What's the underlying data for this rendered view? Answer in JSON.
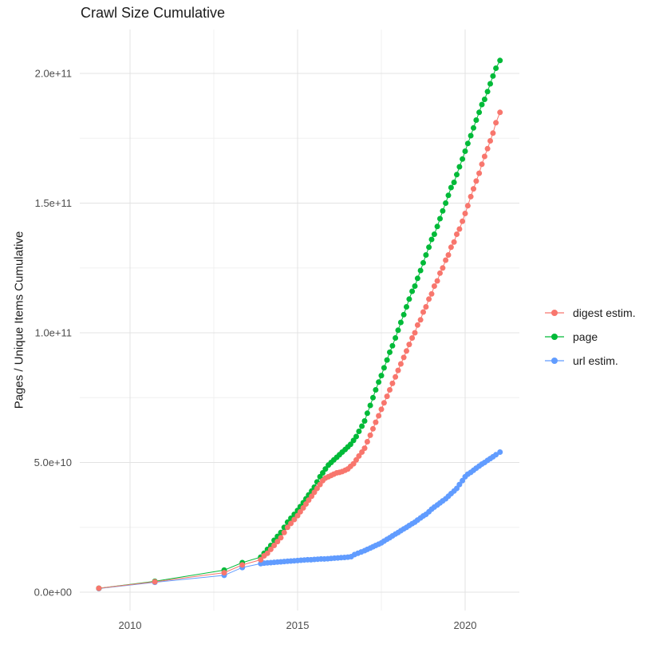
{
  "chart_data": {
    "type": "scatter-line",
    "title": "Crawl Size Cumulative",
    "xlabel": "",
    "ylabel": "Pages / Unique Items Cumulative",
    "grid": true,
    "legend_position": "right",
    "value_unit": "billions (1e9)",
    "x_range": [
      2008.5,
      2021.62
    ],
    "y_range_billions": [
      -7,
      217
    ],
    "x_ticks": [
      {
        "label": "2010",
        "value": 2010
      },
      {
        "label": "2015",
        "value": 2015
      },
      {
        "label": "2020",
        "value": 2020
      }
    ],
    "x_minor_gridlines": [
      2012.5,
      2017.5
    ],
    "y_ticks": [
      {
        "label": "0.0e+00",
        "billions": 0
      },
      {
        "label": "5.0e+10",
        "billions": 50
      },
      {
        "label": "1.0e+11",
        "billions": 100
      },
      {
        "label": "1.5e+11",
        "billions": 150
      },
      {
        "label": "2.0e+11",
        "billions": 200
      }
    ],
    "y_minor_gridlines_billions": [
      25,
      75,
      125,
      175
    ],
    "series": [
      {
        "name": "digest estim.",
        "color": "#F8766D",
        "points": [
          [
            2009.07,
            1.5
          ],
          [
            2010.74,
            4.0
          ],
          [
            2012.81,
            7.5
          ],
          [
            2013.35,
            10.5
          ],
          [
            2013.9,
            12.5
          ],
          [
            2014.0,
            14
          ],
          [
            2014.1,
            15
          ],
          [
            2014.2,
            16.5
          ],
          [
            2014.3,
            18
          ],
          [
            2014.4,
            19.5
          ],
          [
            2014.5,
            21
          ],
          [
            2014.6,
            23
          ],
          [
            2014.7,
            25
          ],
          [
            2014.8,
            26.5
          ],
          [
            2014.9,
            28
          ],
          [
            2015.0,
            29.5
          ],
          [
            2015.08,
            31
          ],
          [
            2015.17,
            32.5
          ],
          [
            2015.25,
            34
          ],
          [
            2015.33,
            35.5
          ],
          [
            2015.42,
            37
          ],
          [
            2015.5,
            38.5
          ],
          [
            2015.58,
            40
          ],
          [
            2015.67,
            41.5
          ],
          [
            2015.75,
            43
          ],
          [
            2015.83,
            44
          ],
          [
            2015.92,
            44.5
          ],
          [
            2016.0,
            45
          ],
          [
            2016.08,
            45.5
          ],
          [
            2016.17,
            46
          ],
          [
            2016.25,
            46.2
          ],
          [
            2016.33,
            46.5
          ],
          [
            2016.42,
            47
          ],
          [
            2016.5,
            47.5
          ],
          [
            2016.58,
            48.5
          ],
          [
            2016.67,
            49.5
          ],
          [
            2016.75,
            51
          ],
          [
            2016.83,
            52.5
          ],
          [
            2016.92,
            54
          ],
          [
            2017.0,
            55.5
          ],
          [
            2017.08,
            58
          ],
          [
            2017.17,
            60.5
          ],
          [
            2017.25,
            63
          ],
          [
            2017.33,
            65.5
          ],
          [
            2017.42,
            68
          ],
          [
            2017.5,
            70.5
          ],
          [
            2017.58,
            73
          ],
          [
            2017.67,
            75.5
          ],
          [
            2017.75,
            78
          ],
          [
            2017.83,
            80.5
          ],
          [
            2017.92,
            83
          ],
          [
            2018.0,
            85.5
          ],
          [
            2018.08,
            88
          ],
          [
            2018.17,
            90.5
          ],
          [
            2018.25,
            93
          ],
          [
            2018.33,
            95.5
          ],
          [
            2018.42,
            98
          ],
          [
            2018.5,
            100
          ],
          [
            2018.58,
            103
          ],
          [
            2018.67,
            105
          ],
          [
            2018.75,
            108
          ],
          [
            2018.83,
            110
          ],
          [
            2018.92,
            113
          ],
          [
            2019.0,
            115
          ],
          [
            2019.08,
            118
          ],
          [
            2019.17,
            120
          ],
          [
            2019.25,
            123
          ],
          [
            2019.33,
            125
          ],
          [
            2019.42,
            128
          ],
          [
            2019.5,
            130
          ],
          [
            2019.58,
            133
          ],
          [
            2019.67,
            135
          ],
          [
            2019.75,
            138
          ],
          [
            2019.83,
            140
          ],
          [
            2019.92,
            143
          ],
          [
            2020.0,
            146
          ],
          [
            2020.08,
            149
          ],
          [
            2020.17,
            152.5
          ],
          [
            2020.25,
            155.5
          ],
          [
            2020.33,
            158.5
          ],
          [
            2020.42,
            161.5
          ],
          [
            2020.5,
            165
          ],
          [
            2020.58,
            168
          ],
          [
            2020.67,
            171
          ],
          [
            2020.75,
            174
          ],
          [
            2020.83,
            177
          ],
          [
            2020.92,
            181
          ],
          [
            2021.04,
            185
          ]
        ]
      },
      {
        "name": "page",
        "color": "#00BA38",
        "points": [
          [
            2009.07,
            1.5
          ],
          [
            2010.74,
            4.2
          ],
          [
            2012.81,
            8.5
          ],
          [
            2013.35,
            11.4
          ],
          [
            2013.9,
            13.5
          ],
          [
            2014.0,
            15
          ],
          [
            2014.1,
            16.5
          ],
          [
            2014.2,
            18
          ],
          [
            2014.3,
            20
          ],
          [
            2014.4,
            21.5
          ],
          [
            2014.5,
            23
          ],
          [
            2014.6,
            25
          ],
          [
            2014.7,
            27
          ],
          [
            2014.8,
            28.5
          ],
          [
            2014.9,
            30
          ],
          [
            2015.0,
            31.5
          ],
          [
            2015.08,
            33
          ],
          [
            2015.17,
            34.5
          ],
          [
            2015.25,
            36
          ],
          [
            2015.33,
            37.5
          ],
          [
            2015.42,
            39
          ],
          [
            2015.5,
            40.5
          ],
          [
            2015.58,
            42.5
          ],
          [
            2015.67,
            44.5
          ],
          [
            2015.75,
            46
          ],
          [
            2015.83,
            47.5
          ],
          [
            2015.92,
            49
          ],
          [
            2016.0,
            50
          ],
          [
            2016.08,
            51
          ],
          [
            2016.17,
            52
          ],
          [
            2016.25,
            53
          ],
          [
            2016.33,
            54
          ],
          [
            2016.42,
            55
          ],
          [
            2016.5,
            56
          ],
          [
            2016.58,
            57
          ],
          [
            2016.67,
            58.5
          ],
          [
            2016.75,
            60
          ],
          [
            2016.83,
            62
          ],
          [
            2016.92,
            64
          ],
          [
            2017.0,
            66
          ],
          [
            2017.08,
            69
          ],
          [
            2017.17,
            72
          ],
          [
            2017.25,
            75
          ],
          [
            2017.33,
            78
          ],
          [
            2017.42,
            81
          ],
          [
            2017.5,
            83.5
          ],
          [
            2017.58,
            86.5
          ],
          [
            2017.67,
            89.5
          ],
          [
            2017.75,
            92.5
          ],
          [
            2017.83,
            95
          ],
          [
            2017.92,
            98
          ],
          [
            2018.0,
            101
          ],
          [
            2018.08,
            104
          ],
          [
            2018.17,
            107
          ],
          [
            2018.25,
            110
          ],
          [
            2018.33,
            113
          ],
          [
            2018.42,
            116
          ],
          [
            2018.5,
            118
          ],
          [
            2018.58,
            121
          ],
          [
            2018.67,
            124
          ],
          [
            2018.75,
            127
          ],
          [
            2018.83,
            130
          ],
          [
            2018.92,
            133
          ],
          [
            2019.0,
            136
          ],
          [
            2019.08,
            138
          ],
          [
            2019.17,
            141
          ],
          [
            2019.25,
            144
          ],
          [
            2019.33,
            147
          ],
          [
            2019.42,
            150
          ],
          [
            2019.5,
            153
          ],
          [
            2019.58,
            156
          ],
          [
            2019.67,
            158
          ],
          [
            2019.75,
            161
          ],
          [
            2019.83,
            164
          ],
          [
            2019.92,
            167
          ],
          [
            2020.0,
            170
          ],
          [
            2020.08,
            173
          ],
          [
            2020.17,
            176
          ],
          [
            2020.25,
            179
          ],
          [
            2020.33,
            182
          ],
          [
            2020.42,
            185
          ],
          [
            2020.5,
            188
          ],
          [
            2020.58,
            190
          ],
          [
            2020.67,
            193
          ],
          [
            2020.75,
            196
          ],
          [
            2020.83,
            199
          ],
          [
            2020.92,
            202
          ],
          [
            2021.04,
            205
          ]
        ]
      },
      {
        "name": "url estim.",
        "color": "#619CFF",
        "points": [
          [
            2009.07,
            1.4
          ],
          [
            2010.74,
            3.8
          ],
          [
            2012.81,
            6.5
          ],
          [
            2013.35,
            9.5
          ],
          [
            2013.9,
            11
          ],
          [
            2014.0,
            11.2
          ],
          [
            2014.1,
            11.3
          ],
          [
            2014.2,
            11.4
          ],
          [
            2014.3,
            11.5
          ],
          [
            2014.4,
            11.6
          ],
          [
            2014.5,
            11.7
          ],
          [
            2014.6,
            11.8
          ],
          [
            2014.7,
            11.9
          ],
          [
            2014.8,
            12
          ],
          [
            2014.9,
            12.1
          ],
          [
            2015.0,
            12.2
          ],
          [
            2015.1,
            12.3
          ],
          [
            2015.2,
            12.4
          ],
          [
            2015.3,
            12.5
          ],
          [
            2015.4,
            12.5
          ],
          [
            2015.5,
            12.6
          ],
          [
            2015.6,
            12.7
          ],
          [
            2015.7,
            12.8
          ],
          [
            2015.8,
            12.8
          ],
          [
            2015.9,
            12.9
          ],
          [
            2016.0,
            13
          ],
          [
            2016.1,
            13.1
          ],
          [
            2016.2,
            13.2
          ],
          [
            2016.3,
            13.3
          ],
          [
            2016.4,
            13.4
          ],
          [
            2016.5,
            13.5
          ],
          [
            2016.6,
            13.7
          ],
          [
            2016.7,
            14.5
          ],
          [
            2016.8,
            15
          ],
          [
            2016.9,
            15.5
          ],
          [
            2017.0,
            16
          ],
          [
            2017.08,
            16.5
          ],
          [
            2017.17,
            17
          ],
          [
            2017.25,
            17.5
          ],
          [
            2017.33,
            18
          ],
          [
            2017.42,
            18.5
          ],
          [
            2017.5,
            19
          ],
          [
            2017.58,
            19.7
          ],
          [
            2017.67,
            20.4
          ],
          [
            2017.75,
            21
          ],
          [
            2017.83,
            21.7
          ],
          [
            2017.92,
            22.4
          ],
          [
            2018.0,
            23
          ],
          [
            2018.08,
            23.7
          ],
          [
            2018.17,
            24.4
          ],
          [
            2018.25,
            25
          ],
          [
            2018.33,
            25.7
          ],
          [
            2018.42,
            26.4
          ],
          [
            2018.5,
            27
          ],
          [
            2018.58,
            27.8
          ],
          [
            2018.67,
            28.6
          ],
          [
            2018.75,
            29.4
          ],
          [
            2018.83,
            30
          ],
          [
            2018.92,
            31
          ],
          [
            2019.0,
            32
          ],
          [
            2019.08,
            32.8
          ],
          [
            2019.17,
            33.6
          ],
          [
            2019.25,
            34.4
          ],
          [
            2019.33,
            35.2
          ],
          [
            2019.42,
            36
          ],
          [
            2019.5,
            37
          ],
          [
            2019.58,
            38
          ],
          [
            2019.67,
            39
          ],
          [
            2019.75,
            40
          ],
          [
            2019.83,
            41.5
          ],
          [
            2019.92,
            43
          ],
          [
            2020.0,
            44.5
          ],
          [
            2020.08,
            45.5
          ],
          [
            2020.17,
            46.2
          ],
          [
            2020.25,
            47
          ],
          [
            2020.33,
            47.8
          ],
          [
            2020.42,
            48.6
          ],
          [
            2020.5,
            49.4
          ],
          [
            2020.58,
            50
          ],
          [
            2020.67,
            50.8
          ],
          [
            2020.75,
            51.5
          ],
          [
            2020.83,
            52.2
          ],
          [
            2020.92,
            53
          ],
          [
            2021.04,
            54
          ]
        ]
      }
    ],
    "colors": {
      "background": "#FFFFFF",
      "grid_major": "#E3E3E3",
      "grid_minor": "#F0F0F0",
      "tick_text": "#4D4D4D",
      "title_text": "#1B1B1B"
    }
  }
}
